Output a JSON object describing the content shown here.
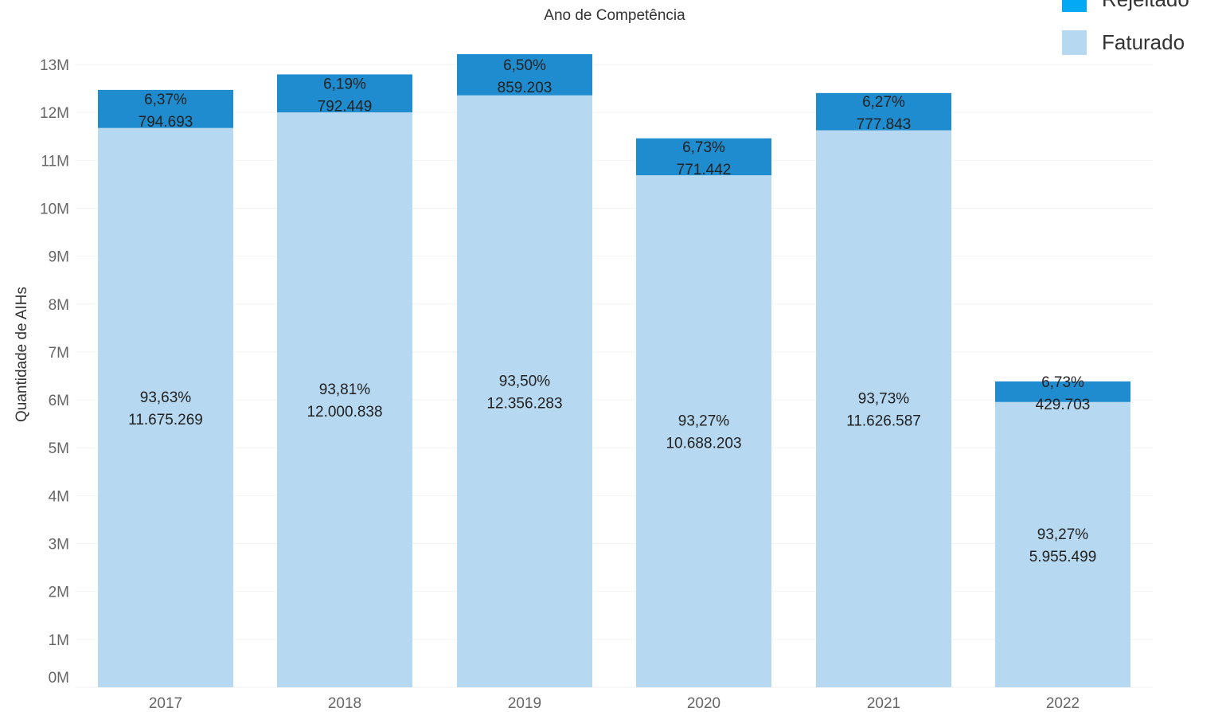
{
  "chart_data": {
    "type": "bar",
    "stacked": true,
    "title": "Ano de Competência",
    "xlabel": "",
    "ylabel": "Quantidade de AIHs",
    "categories": [
      "2017",
      "2018",
      "2019",
      "2020",
      "2021",
      "2022"
    ],
    "ylim": [
      0,
      13000000
    ],
    "yticks": [
      "0M",
      "1M",
      "2M",
      "3M",
      "4M",
      "5M",
      "6M",
      "7M",
      "8M",
      "9M",
      "10M",
      "11M",
      "12M",
      "13M"
    ],
    "series": [
      {
        "name": "Faturado",
        "color": "#b6d8f1",
        "values": [
          11675269,
          12000838,
          12356283,
          10688203,
          11626587,
          5955499
        ],
        "labels": [
          [
            "93,63%",
            "11.675.269"
          ],
          [
            "93,81%",
            "12.000.838"
          ],
          [
            "93,50%",
            "12.356.283"
          ],
          [
            "93,27%",
            "10.688.203"
          ],
          [
            "93,73%",
            "11.626.587"
          ],
          [
            "93,27%",
            "5.955.499"
          ]
        ]
      },
      {
        "name": "Rejeitado",
        "color": "#1f8ccf",
        "values": [
          794693,
          792449,
          859203,
          771442,
          777843,
          429703
        ],
        "labels": [
          [
            "6,37%",
            "794.693"
          ],
          [
            "6,19%",
            "792.449"
          ],
          [
            "6,50%",
            "859.203"
          ],
          [
            "6,73%",
            "771.442"
          ],
          [
            "6,27%",
            "777.843"
          ],
          [
            "6,73%",
            "429.703"
          ]
        ]
      }
    ],
    "grid": true,
    "legend_position": "top-right"
  },
  "legend": {
    "items": [
      {
        "label": "Rejeitado",
        "color": "#03a9f4"
      },
      {
        "label": "Faturado",
        "color": "#b6d8f1"
      }
    ]
  }
}
